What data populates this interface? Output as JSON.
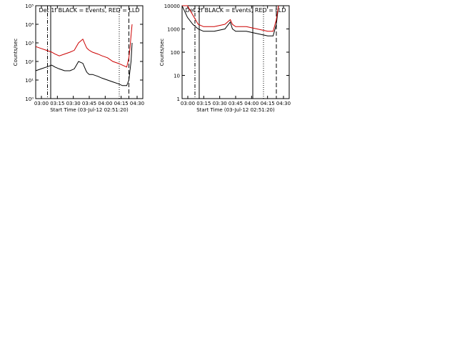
{
  "chart_data": [
    {
      "type": "line",
      "title": "Det 1f BLACK = Events, RED = LLD",
      "xlabel": "Start Time (03-Jul-12 02:51:20)",
      "ylabel": "Counts/sec",
      "log_y": true,
      "ylim": [
        1,
        100000
      ],
      "ytick_labels": [
        "10⁰",
        "10¹",
        "10²",
        "10³",
        "10⁴",
        "10⁵"
      ],
      "xlim": [
        0,
        100
      ],
      "xticks": [
        "03:00",
        "03:15",
        "03:30",
        "03:45",
        "04:00",
        "04:15",
        "04:30"
      ],
      "series": [
        {
          "color": "#000000",
          "x": [
            0,
            5,
            10,
            15,
            18,
            22,
            27,
            32,
            36,
            40,
            44,
            47,
            48,
            50,
            53,
            58,
            62,
            67,
            72,
            77,
            81,
            85,
            87,
            88,
            89,
            90
          ],
          "y": [
            1.5,
            1.6,
            1.7,
            1.8,
            1.7,
            1.6,
            1.5,
            1.5,
            1.6,
            2.0,
            1.9,
            1.5,
            1.4,
            1.3,
            1.3,
            1.2,
            1.1,
            1.0,
            0.9,
            0.8,
            0.7,
            0.7,
            1.0,
            1.5,
            2.0,
            3.0
          ]
        },
        {
          "color": "#cc0000",
          "x": [
            0,
            5,
            10,
            15,
            18,
            22,
            27,
            32,
            36,
            40,
            44,
            47,
            48,
            50,
            53,
            58,
            62,
            67,
            72,
            77,
            81,
            85,
            87,
            88,
            89,
            90
          ],
          "y": [
            2.8,
            2.7,
            2.6,
            2.5,
            2.4,
            2.3,
            2.4,
            2.5,
            2.6,
            3.0,
            3.2,
            2.8,
            2.7,
            2.6,
            2.5,
            2.4,
            2.3,
            2.2,
            2.0,
            1.9,
            1.8,
            1.7,
            2.2,
            2.7,
            3.4,
            4.0
          ]
        }
      ],
      "vlines": [
        {
          "x": 11,
          "style": "dashdot"
        },
        {
          "x": 14,
          "style": "solid"
        },
        {
          "x": 78,
          "style": "dotted"
        },
        {
          "x": 87,
          "style": "dashed"
        }
      ]
    },
    {
      "type": "line",
      "title": "Det 2f BLACK = Events, RED = LLD",
      "xlabel": "Start Time (03-Jul-12 02:51:20)",
      "ylabel": "Counts/sec",
      "log_y": true,
      "ylim": [
        1,
        10000
      ],
      "ytick_labels": [
        "1",
        "10",
        "100",
        "1000",
        "10000"
      ],
      "xlim": [
        0,
        100
      ],
      "xticks": [
        "03:00",
        "03:15",
        "03:30",
        "03:45",
        "04:00",
        "04:15",
        "04:30"
      ],
      "series": [
        {
          "color": "#000000",
          "x": [
            0,
            5,
            10,
            15,
            20,
            30,
            40,
            45,
            47,
            50,
            60,
            70,
            80,
            85,
            88,
            90
          ],
          "y": [
            4.0,
            3.5,
            3.2,
            3.0,
            2.9,
            2.9,
            3.0,
            3.3,
            3.0,
            2.9,
            2.9,
            2.8,
            2.7,
            2.7,
            3.2,
            4.0
          ]
        },
        {
          "color": "#cc0000",
          "x": [
            0,
            5,
            10,
            15,
            20,
            30,
            40,
            45,
            47,
            50,
            60,
            70,
            80,
            85,
            88,
            90
          ],
          "y": [
            4.0,
            4.0,
            3.6,
            3.2,
            3.1,
            3.1,
            3.2,
            3.4,
            3.2,
            3.1,
            3.1,
            3.0,
            2.9,
            2.9,
            3.4,
            4.0
          ]
        }
      ],
      "vlines": [
        {
          "x": 12,
          "style": "dashdot"
        },
        {
          "x": 16,
          "style": "solid"
        },
        {
          "x": 66,
          "style": "solid"
        },
        {
          "x": 76,
          "style": "dotted"
        },
        {
          "x": 88,
          "style": "dashed"
        }
      ]
    }
  ]
}
